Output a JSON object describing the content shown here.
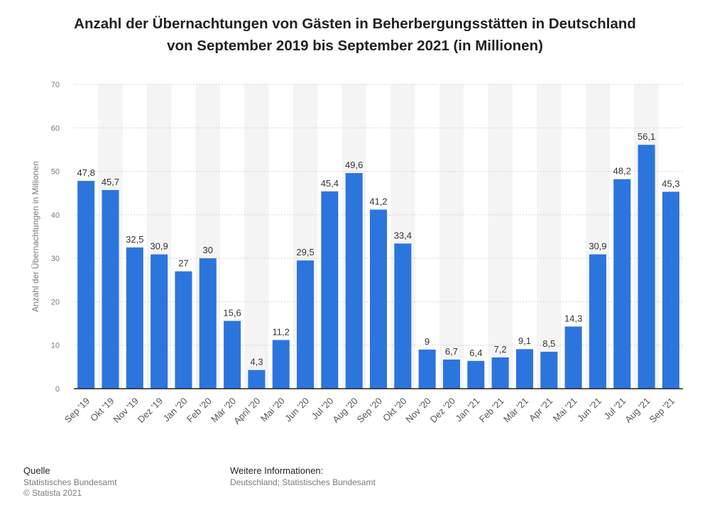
{
  "title_line1": "Anzahl der Übernachtungen von Gästen in Beherbergungsstätten in Deutschland",
  "title_line2": "von September 2019 bis September 2021 (in Millionen)",
  "chart_data": {
    "type": "bar",
    "title": "Anzahl der Übernachtungen von Gästen in Beherbergungsstätten in Deutschland von September 2019 bis September 2021 (in Millionen)",
    "xlabel": "",
    "ylabel": "Anzahl der Übernachtungen in Millionen",
    "ylim": [
      0,
      70
    ],
    "yticks": [
      0,
      10,
      20,
      30,
      40,
      50,
      60,
      70
    ],
    "grid": true,
    "bar_color": "#2c75dd",
    "categories": [
      "Sep '19",
      "Okt '19",
      "Nov '19",
      "Dez '19",
      "Jan '20",
      "Feb '20",
      "Mär '20",
      "April '20",
      "Mai '20",
      "Jun '20",
      "Jul '20",
      "Aug '20",
      "Sep '20",
      "Okt '20",
      "Nov '20",
      "Dez '20",
      "Jan '21",
      "Feb '21",
      "Mär '21",
      "Apr '21",
      "Mai '21",
      "Jun '21",
      "Jul '21",
      "Aug '21",
      "Sep '21"
    ],
    "values": [
      47.8,
      45.7,
      32.5,
      30.9,
      27,
      30,
      15.6,
      4.3,
      11.2,
      29.5,
      45.4,
      49.6,
      41.2,
      33.4,
      9,
      6.7,
      6.4,
      7.2,
      9.1,
      8.5,
      14.3,
      30.9,
      48.2,
      56.1,
      45.3
    ],
    "value_labels": [
      "47,8",
      "45,7",
      "32,5",
      "30,9",
      "27",
      "30",
      "15,6",
      "4,3",
      "11,2",
      "29,5",
      "45,4",
      "49,6",
      "41,2",
      "33,4",
      "9",
      "6,7",
      "6,4",
      "7,2",
      "9,1",
      "8,5",
      "14,3",
      "30,9",
      "48,2",
      "56,1",
      "45,3"
    ]
  },
  "footer": {
    "source_heading": "Quelle",
    "source_line1": "Statistisches Bundesamt",
    "source_line2": "© Statista 2021",
    "info_heading": "Weitere Informationen:",
    "info_line1": "Deutschland; Statistisches Bundesamt"
  }
}
